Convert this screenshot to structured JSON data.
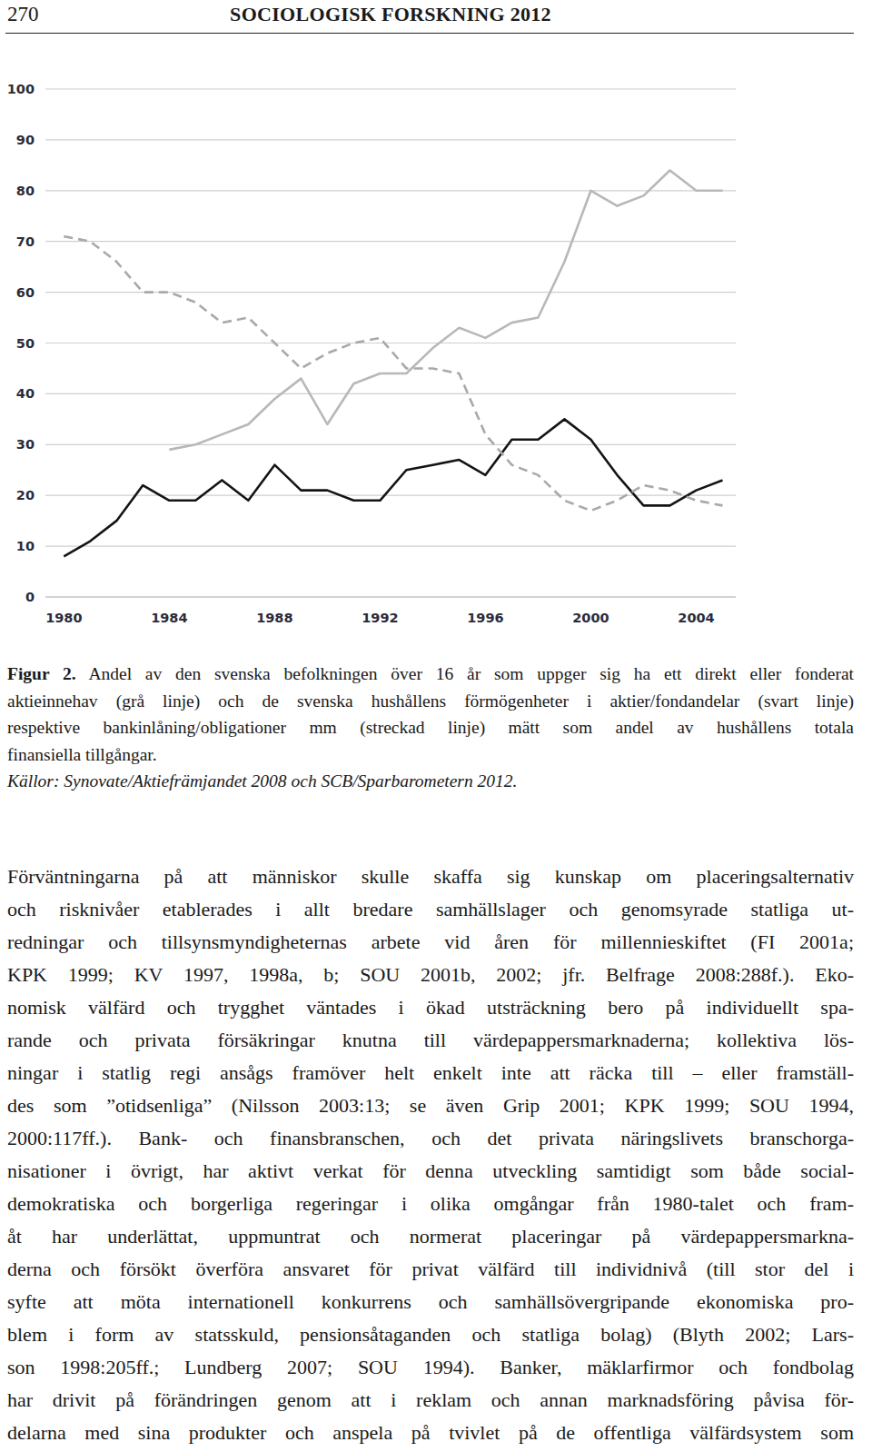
{
  "header": {
    "page": "270",
    "journal": "SOCIOLOGISK FORSKNING 2012"
  },
  "chart_data": {
    "type": "line",
    "x": [
      1980,
      1981,
      1982,
      1983,
      1984,
      1985,
      1986,
      1987,
      1988,
      1989,
      1990,
      1991,
      1992,
      1993,
      1994,
      1995,
      1996,
      1997,
      1998,
      1999,
      2000,
      2001,
      2002,
      2003,
      2004,
      2005
    ],
    "series": [
      {
        "color": "#b8b8b8",
        "line_style": "solid",
        "values": [
          null,
          null,
          null,
          null,
          29,
          30,
          32,
          34,
          39,
          43,
          34,
          42,
          44,
          44,
          49,
          53,
          51,
          54,
          55,
          66,
          80,
          77,
          79,
          84,
          80,
          80
        ]
      },
      {
        "color": "#141414",
        "line_style": "solid",
        "values": [
          8,
          11,
          15,
          22,
          19,
          19,
          23,
          19,
          26,
          21,
          21,
          19,
          19,
          25,
          26,
          27,
          24,
          31,
          31,
          35,
          31,
          24,
          18,
          18,
          21,
          23
        ]
      },
      {
        "color": "#a9a9a9",
        "line_style": "dashed",
        "values": [
          71,
          70,
          66,
          60,
          60,
          58,
          54,
          55,
          50,
          45,
          48,
          50,
          51,
          45,
          45,
          44,
          32,
          26,
          24,
          19,
          17,
          19,
          22,
          21,
          19,
          18
        ]
      }
    ],
    "xlim": [
      1979.3,
      2005.5
    ],
    "xticks": [
      1980,
      1984,
      1988,
      1992,
      1996,
      2000,
      2004
    ],
    "ylim": [
      0,
      100
    ],
    "yticks": [
      0,
      10,
      20,
      30,
      40,
      50,
      60,
      70,
      80,
      90,
      100
    ],
    "grid": true
  },
  "caption": {
    "label": "Figur 2.",
    "lines": [
      "Andel av den svenska befolkningen över 16 år som uppger sig ha ett direkt eller fonderat",
      "aktieinnehav (grå linje) och de svenska hushållens förmögenheter i aktier/fondandelar (svart linje)",
      "respektive bankinlåning/obligationer mm (streckad linje) mätt som andel av hushållens totala",
      "finansiella tillgångar."
    ],
    "source": "Källor: Synovate/Aktiefrämjandet 2008 och SCB/Sparbarometern 2012."
  },
  "body": {
    "lines": [
      "Förväntningarna på att människor skulle skaffa sig kunskap om placeringsalternativ",
      "och risknivåer etablerades i allt bredare samhällslager och genomsyrade statliga ut-",
      "redningar och tillsynsmyndigheternas arbete vid åren för millennieskiftet (FI 2001a;",
      "KPK 1999; KV 1997, 1998a, b; SOU 2001b, 2002; jfr. Belfrage 2008:288f.). Eko-",
      "nomisk välfärd och trygghet väntades i ökad utsträckning bero på individuellt spa-",
      "rande och privata försäkringar knutna till värdepappersmarknaderna; kollektiva lös-",
      "ningar i statlig regi ansågs framöver helt enkelt inte att räcka till – eller framställ-",
      "des som ”otidsenliga” (Nilsson 2003:13; se även Grip 2001; KPK 1999; SOU 1994,",
      "2000:117ff.). Bank- och finansbranschen, och det privata näringslivets branschorga-",
      "nisationer i övrigt, har aktivt verkat för denna utveckling samtidigt som både social-",
      "demokratiska och borgerliga regeringar i olika omgångar från 1980-talet och fram-",
      "åt har underlättat, uppmuntrat och normerat placeringar på värdepappersmarkna-",
      "derna och försökt överföra ansvaret för privat välfärd till individnivå (till stor del i",
      "syfte att möta internationell konkurrens och samhällsövergripande ekonomiska pro-",
      "blem i form av statsskuld, pensionsåtaganden och statliga bolag) (Blyth 2002; Lars-",
      "son 1998:205ff.; Lundberg 2007; SOU 1994). Banker, mäklarfirmor och fondbolag",
      "har drivit på förändringen genom att i reklam och annan marknadsföring påvisa för-",
      "delarna med sina produkter och anspela på tvivlet på de offentliga välfärdsystem som"
    ]
  }
}
